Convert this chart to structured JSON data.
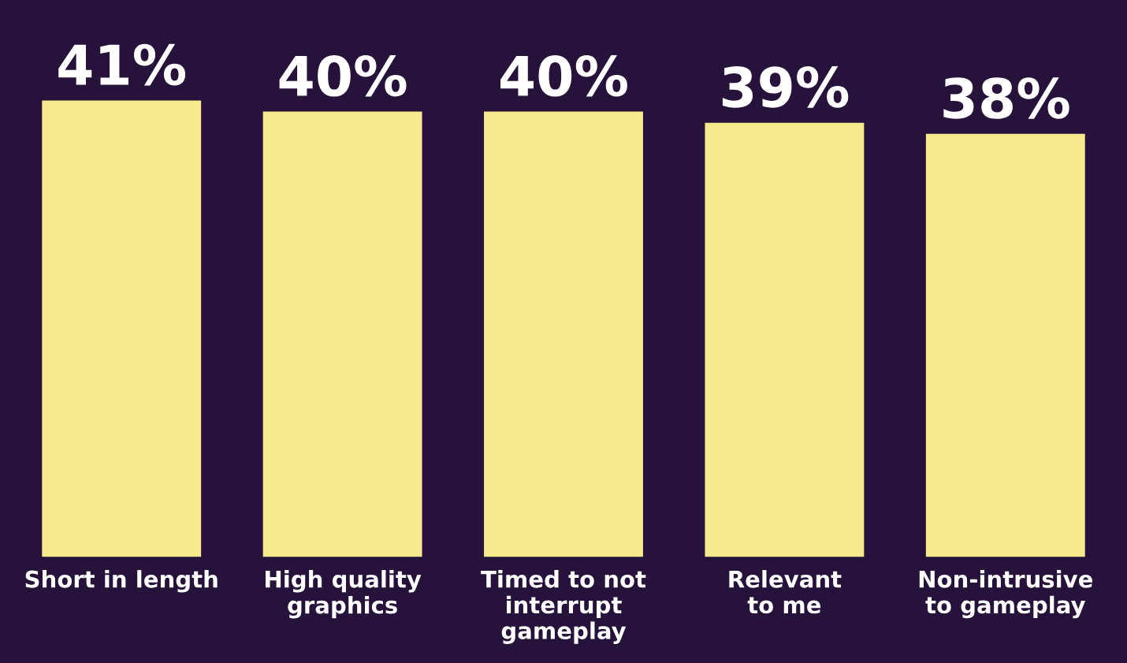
{
  "chart_data": {
    "type": "bar",
    "categories": [
      "Short in length",
      "High quality\ngraphics",
      "Timed to not\ninterrupt\ngameplay",
      "Relevant\nto me",
      "Non-intrusive\nto gameplay"
    ],
    "values": [
      41,
      40,
      40,
      39,
      38
    ],
    "value_labels": [
      "41%",
      "40%",
      "40%",
      "39%",
      "38%"
    ],
    "color": "#f7e98e",
    "grid": false,
    "legend": false
  }
}
